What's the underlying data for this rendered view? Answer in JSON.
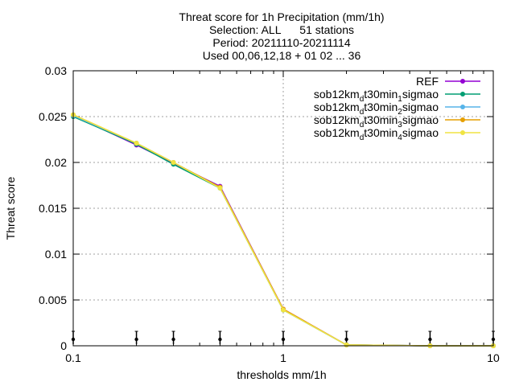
{
  "chart_data": {
    "type": "line",
    "title_lines": [
      "Threat score  for 1h Precipitation (mm/1h)",
      "Selection: ALL      51 stations",
      "Period: 20211110-20211114",
      "Used 00,06,12,18 + 01 02 ... 36"
    ],
    "xlabel": "thresholds mm/1h",
    "ylabel": "Threat score",
    "xscale": "log",
    "xlim": [
      0.1,
      10
    ],
    "ylim": [
      0,
      0.03
    ],
    "x_ticks": [
      {
        "value": 0.1,
        "label": "0.1"
      },
      {
        "value": 1,
        "label": "1"
      },
      {
        "value": 10,
        "label": "10"
      }
    ],
    "y_ticks": [
      {
        "value": 0,
        "label": "0"
      },
      {
        "value": 0.005,
        "label": "0.005"
      },
      {
        "value": 0.01,
        "label": "0.01"
      },
      {
        "value": 0.015,
        "label": "0.015"
      },
      {
        "value": 0.02,
        "label": "0.02"
      },
      {
        "value": 0.025,
        "label": "0.025"
      },
      {
        "value": 0.03,
        "label": "0.03"
      }
    ],
    "grid": true,
    "legend_position": "top-right",
    "threshold_markers": [
      0.1,
      0.2,
      0.3,
      0.5,
      1,
      2,
      5,
      10
    ],
    "x": [
      0.1,
      0.2,
      0.3,
      0.5,
      1,
      2,
      5,
      10
    ],
    "series": [
      {
        "name": "REF",
        "subscript": "",
        "color": "#9400d3",
        "values": [
          0.0251,
          0.0219,
          0.0199,
          0.0174,
          0.004,
          0.0001,
          0.0,
          0.0
        ]
      },
      {
        "name": "sob12km",
        "subscript": "d",
        "name_mid": "t30min",
        "subscript2": "1",
        "name_end": "sigmao",
        "color": "#009e73",
        "values": [
          0.025,
          0.022,
          0.0198,
          0.0172,
          0.0039,
          0.0001,
          0.0,
          0.0
        ]
      },
      {
        "name": "sob12km",
        "subscript": "d",
        "name_mid": "t30min",
        "subscript2": "2",
        "name_end": "sigmao",
        "color": "#56b4e9",
        "values": [
          0.0251,
          0.0221,
          0.02,
          0.0173,
          0.0039,
          0.0001,
          0.0,
          0.0
        ]
      },
      {
        "name": "sob12km",
        "subscript": "d",
        "name_mid": "t30min",
        "subscript2": "3",
        "name_end": "sigmao",
        "color": "#e69f00",
        "values": [
          0.0252,
          0.0221,
          0.02,
          0.0173,
          0.004,
          0.0001,
          0.0,
          0.0
        ]
      },
      {
        "name": "sob12km",
        "subscript": "d",
        "name_mid": "t30min",
        "subscript2": "4",
        "name_end": "sigmao",
        "color": "#f0e442",
        "values": [
          0.0252,
          0.0221,
          0.02,
          0.0172,
          0.0039,
          0.0001,
          0.0,
          0.0
        ]
      }
    ]
  }
}
